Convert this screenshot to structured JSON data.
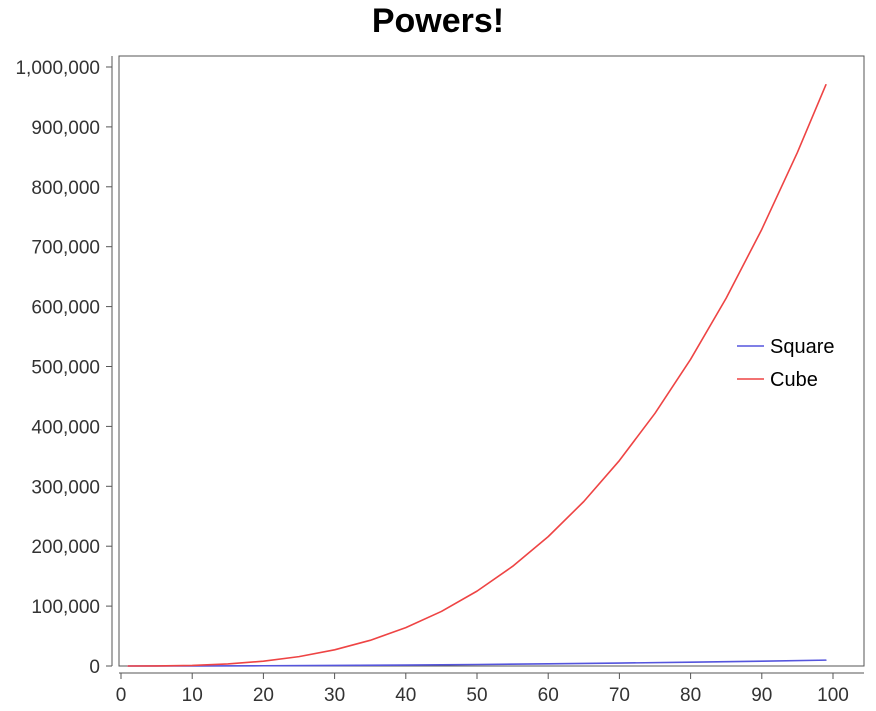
{
  "chart_data": {
    "type": "line",
    "title": "Powers!",
    "xlabel": "",
    "ylabel": "",
    "xlim": [
      0,
      100
    ],
    "ylim": [
      0,
      1000000
    ],
    "x_ticks": [
      "0",
      "10",
      "20",
      "30",
      "40",
      "50",
      "60",
      "70",
      "80",
      "90",
      "100"
    ],
    "y_ticks": [
      "0",
      "100,000",
      "200,000",
      "300,000",
      "400,000",
      "500,000",
      "600,000",
      "700,000",
      "800,000",
      "900,000",
      "1,000,000"
    ],
    "x_tick_values": [
      0,
      10,
      20,
      30,
      40,
      50,
      60,
      70,
      80,
      90,
      100
    ],
    "y_tick_values": [
      0,
      100000,
      200000,
      300000,
      400000,
      500000,
      600000,
      700000,
      800000,
      900000,
      1000000
    ],
    "grid": false,
    "legend_position": "right",
    "series": [
      {
        "name": "Square",
        "color": "#5555dd",
        "x": [
          1,
          10,
          20,
          30,
          40,
          50,
          60,
          70,
          80,
          90,
          99
        ],
        "values": [
          1,
          100,
          400,
          900,
          1600,
          2500,
          3600,
          4900,
          6400,
          8100,
          9801
        ]
      },
      {
        "name": "Cube",
        "color": "#ee4444",
        "x": [
          1,
          5,
          10,
          15,
          20,
          25,
          30,
          35,
          40,
          45,
          50,
          55,
          60,
          65,
          70,
          75,
          80,
          85,
          90,
          95,
          99
        ],
        "values": [
          1,
          125,
          1000,
          3375,
          8000,
          15625,
          27000,
          42875,
          64000,
          91125,
          125000,
          166375,
          216000,
          274625,
          343000,
          421875,
          512000,
          614125,
          729000,
          857375,
          970299
        ]
      }
    ]
  }
}
